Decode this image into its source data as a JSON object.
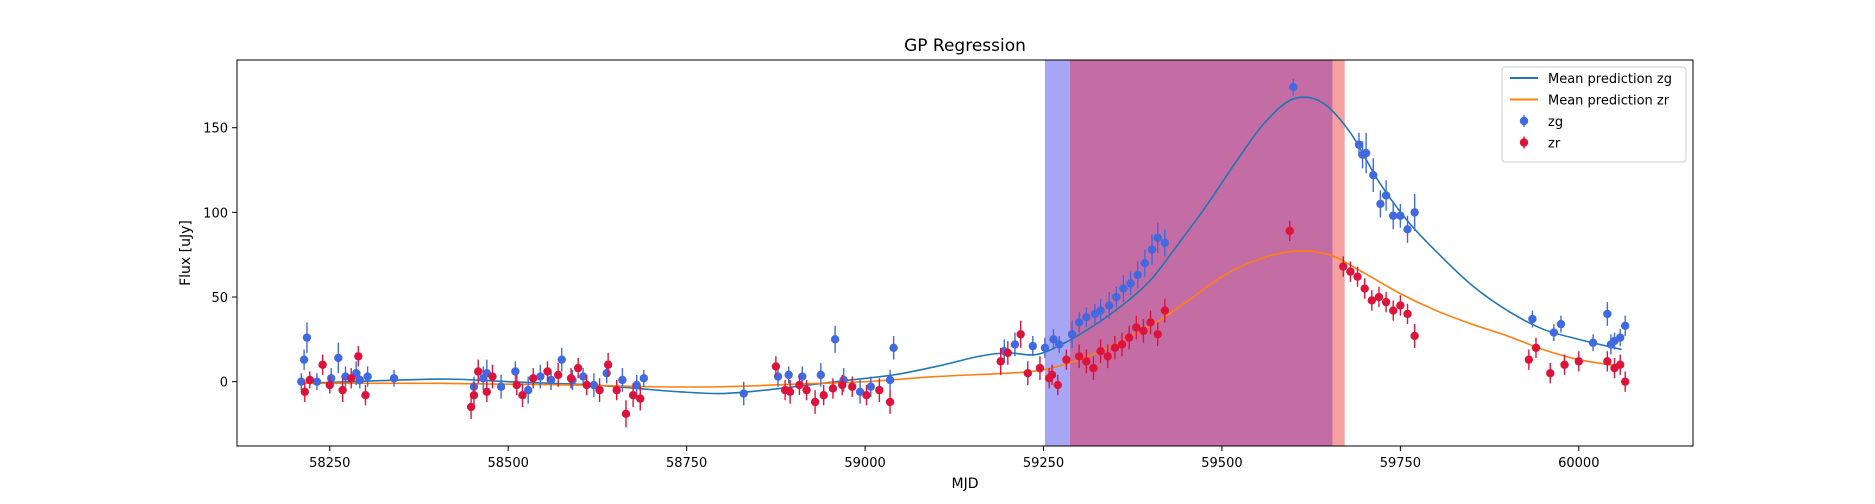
{
  "chart_data": {
    "type": "scatter",
    "title": "GP Regression",
    "xlabel": "MJD",
    "ylabel": "Flux [uJy]",
    "xlim": [
      58120,
      60160
    ],
    "ylim": [
      -38,
      190
    ],
    "xticks": [
      58250,
      58500,
      58750,
      59000,
      59250,
      59500,
      59750,
      60000
    ],
    "yticks": [
      0,
      50,
      100,
      150
    ],
    "grid": false,
    "legend_position": "top-right",
    "shaded_regions": [
      {
        "x0": 59252,
        "x1": 59287,
        "color": "#a6a6f5"
      },
      {
        "x0": 59287,
        "x1": 59655,
        "color": "#c46ca4"
      },
      {
        "x0": 59655,
        "x1": 59672,
        "color": "#f7a0a0"
      }
    ],
    "lines": [
      {
        "name": "Mean prediction zg",
        "color": "#1f77b4",
        "x": [
          58210,
          58280,
          58350,
          58420,
          58500,
          58560,
          58620,
          58680,
          58740,
          58800,
          58860,
          58920,
          58980,
          59040,
          59100,
          59160,
          59200,
          59240,
          59280,
          59320,
          59360,
          59400,
          59440,
          59480,
          59520,
          59560,
          59600,
          59640,
          59680,
          59720,
          59760,
          59800,
          59850,
          59900,
          59950,
          60000,
          60060
        ],
        "y": [
          -1,
          0,
          1,
          1.5,
          0,
          -1,
          -2,
          -4,
          -6,
          -7,
          -5,
          -2,
          1,
          4,
          9,
          15,
          17,
          16,
          23,
          33,
          45,
          60,
          82,
          105,
          130,
          153,
          167,
          165,
          147,
          118,
          95,
          77,
          57,
          42,
          31,
          25,
          19
        ]
      },
      {
        "name": "Mean prediction zr",
        "color": "#ff7f0e",
        "x": [
          58210,
          58300,
          58400,
          58500,
          58600,
          58700,
          58800,
          58900,
          59000,
          59100,
          59200,
          59250,
          59300,
          59350,
          59400,
          59450,
          59500,
          59550,
          59600,
          59650,
          59700,
          59750,
          59800,
          59850,
          59900,
          59950,
          60000,
          60060
        ],
        "y": [
          -1,
          -1,
          -1,
          -1.5,
          -2,
          -3,
          -3,
          -1.5,
          0,
          3,
          5,
          7,
          13,
          22,
          33,
          47,
          62,
          72,
          77,
          75,
          64,
          52,
          42,
          34,
          27,
          19,
          13,
          9
        ]
      }
    ],
    "series": [
      {
        "name": "zg",
        "color": "#4169e1",
        "x": [
          58210,
          58214,
          58218,
          58232,
          58252,
          58262,
          58272,
          58287,
          58292,
          58303,
          58340,
          58452,
          58465,
          58470,
          58490,
          58510,
          58528,
          58545,
          58560,
          58575,
          58590,
          58605,
          58620,
          58638,
          58660,
          58680,
          58690,
          58830,
          58878,
          58893,
          58912,
          58938,
          58958,
          58970,
          58993,
          59008,
          59035,
          59040,
          59195,
          59210,
          59235,
          59252,
          59264,
          59272,
          59290,
          59300,
          59310,
          59322,
          59330,
          59342,
          59352,
          59362,
          59372,
          59382,
          59392,
          59402,
          59410,
          59420,
          59600,
          59692,
          59697,
          59702,
          59712,
          59722,
          59730,
          59740,
          59750,
          59760,
          59770,
          59935,
          59965,
          59975,
          60020,
          60040,
          60045,
          60050,
          60058,
          60065
        ],
        "y": [
          0,
          13,
          26,
          0,
          2,
          14,
          3,
          5,
          1,
          3,
          2,
          -3,
          2,
          5,
          -3,
          6,
          -5,
          3,
          1,
          13,
          1,
          3,
          -2,
          5,
          1,
          -2,
          2,
          -7,
          3,
          4,
          3,
          4,
          25,
          1,
          -6,
          -3,
          1,
          20,
          18,
          22,
          21,
          20,
          25,
          22,
          28,
          35,
          38,
          40,
          42,
          45,
          50,
          55,
          58,
          63,
          70,
          78,
          85,
          82,
          174,
          140,
          134,
          135,
          122,
          105,
          110,
          98,
          98,
          90,
          100,
          37,
          29,
          34,
          23,
          40,
          22,
          24,
          26,
          33
        ],
        "err": [
          5,
          6,
          9,
          5,
          6,
          9,
          6,
          7,
          5,
          6,
          5,
          6,
          7,
          8,
          7,
          6,
          8,
          7,
          6,
          7,
          6,
          5,
          7,
          6,
          7,
          6,
          5,
          7,
          6,
          5,
          6,
          7,
          8,
          7,
          7,
          6,
          6,
          7,
          7,
          7,
          6,
          6,
          6,
          5,
          8,
          6,
          6,
          6,
          7,
          8,
          6,
          8,
          7,
          8,
          8,
          9,
          9,
          8,
          5,
          7,
          8,
          12,
          10,
          8,
          9,
          8,
          7,
          8,
          11,
          5,
          5,
          5,
          5,
          7,
          6,
          5,
          5,
          6
        ]
      },
      {
        "name": "zr",
        "color": "#dc143c",
        "x": [
          58215,
          58222,
          58240,
          58250,
          58268,
          58280,
          58290,
          58300,
          58448,
          58452,
          58458,
          58470,
          58478,
          58512,
          58520,
          58535,
          58555,
          58570,
          58588,
          58598,
          58610,
          58628,
          58640,
          58652,
          58665,
          58675,
          58685,
          58875,
          58888,
          58895,
          58908,
          58918,
          58930,
          58942,
          58955,
          58968,
          58982,
          59002,
          59020,
          59035,
          59190,
          59200,
          59218,
          59228,
          59245,
          59258,
          59262,
          59270,
          59282,
          59300,
          59310,
          59320,
          59330,
          59340,
          59350,
          59360,
          59370,
          59380,
          59390,
          59400,
          59410,
          59420,
          59595,
          59670,
          59680,
          59690,
          59700,
          59710,
          59720,
          59730,
          59740,
          59750,
          59760,
          59770,
          59930,
          59940,
          59960,
          59980,
          60000,
          60040,
          60050,
          60058,
          60065
        ],
        "y": [
          -6,
          1,
          10,
          -2,
          -5,
          2,
          15,
          -8,
          -15,
          -8,
          6,
          -6,
          3,
          -2,
          -8,
          2,
          6,
          4,
          2,
          8,
          -2,
          -5,
          10,
          -5,
          -19,
          -8,
          -10,
          9,
          -5,
          -6,
          -2,
          -5,
          -12,
          -8,
          -4,
          -2,
          -3,
          -8,
          -5,
          -12,
          12,
          17,
          28,
          5,
          8,
          2,
          4,
          -2,
          13,
          15,
          12,
          8,
          18,
          15,
          20,
          22,
          26,
          32,
          30,
          35,
          28,
          42,
          89,
          68,
          65,
          62,
          55,
          48,
          50,
          47,
          42,
          45,
          40,
          27,
          13,
          20,
          5,
          10,
          12,
          12,
          8,
          10,
          0
        ],
        "err": [
          6,
          5,
          6,
          5,
          7,
          6,
          6,
          6,
          7,
          8,
          7,
          6,
          7,
          6,
          7,
          6,
          6,
          7,
          6,
          6,
          6,
          7,
          7,
          6,
          8,
          7,
          7,
          6,
          6,
          7,
          6,
          6,
          7,
          6,
          6,
          6,
          6,
          6,
          7,
          7,
          8,
          7,
          8,
          7,
          7,
          6,
          6,
          6,
          6,
          7,
          7,
          7,
          7,
          7,
          7,
          7,
          7,
          7,
          7,
          7,
          7,
          7,
          6,
          6,
          6,
          6,
          6,
          6,
          6,
          6,
          6,
          6,
          6,
          7,
          6,
          6,
          6,
          6,
          6,
          6,
          6,
          6,
          6
        ]
      }
    ]
  }
}
